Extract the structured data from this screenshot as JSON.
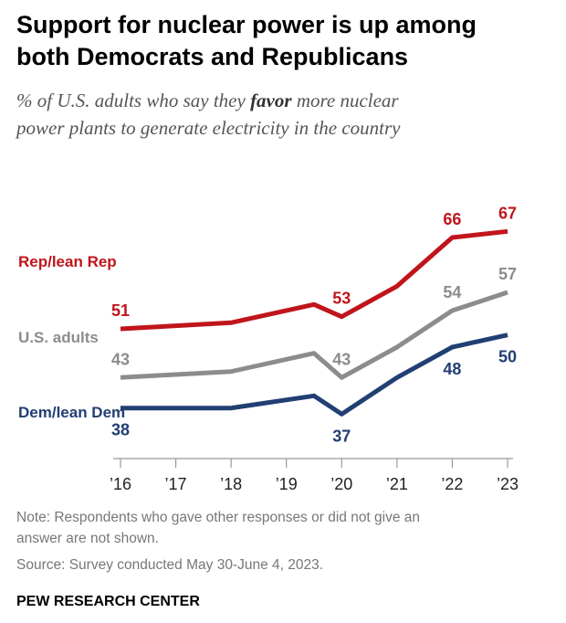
{
  "title_line1": "Support for nuclear power is up among",
  "title_line2": "both Democrats and Republicans",
  "subtitle": {
    "line1_pre": "% of U.S. adults who say they ",
    "line1_bold": "favor",
    "line1_post": " more nuclear",
    "line2": "power plants to generate electricity in the country"
  },
  "note_line1": "Note: Respondents who gave other responses or did not give an",
  "note_line2": "answer are not shown.",
  "source": "Source: Survey conducted May 30-June 4, 2023.",
  "brand": "PEW RESEARCH CENTER",
  "chart_data": {
    "type": "line",
    "x_ticks": [
      2016,
      2017,
      2018,
      2019,
      2020,
      2021,
      2022,
      2023
    ],
    "x_tick_labels": [
      "’16",
      "’17",
      "’18",
      "’19",
      "’20",
      "’21",
      "’22",
      "’23"
    ],
    "ylim": [
      30,
      75
    ],
    "series": [
      {
        "name": "Rep/lean Rep",
        "color": "#c0151c",
        "points": [
          [
            2016,
            51
          ],
          [
            2018,
            52
          ],
          [
            2019.5,
            55
          ],
          [
            2020,
            53
          ],
          [
            2021,
            58
          ],
          [
            2022,
            66
          ],
          [
            2023,
            67
          ]
        ],
        "labels": [
          {
            "x": 2016,
            "y": 51,
            "text": "51",
            "pos": "above"
          },
          {
            "x": 2020,
            "y": 53,
            "text": "53",
            "pos": "above"
          },
          {
            "x": 2022,
            "y": 66,
            "text": "66",
            "pos": "above"
          },
          {
            "x": 2023,
            "y": 67,
            "text": "67",
            "pos": "above"
          }
        ]
      },
      {
        "name": "U.S. adults",
        "color": "#8c8c8c",
        "points": [
          [
            2016,
            43
          ],
          [
            2018,
            44
          ],
          [
            2019.5,
            47
          ],
          [
            2020,
            43
          ],
          [
            2021,
            48
          ],
          [
            2022,
            54
          ],
          [
            2023,
            57
          ]
        ],
        "labels": [
          {
            "x": 2016,
            "y": 43,
            "text": "43",
            "pos": "above"
          },
          {
            "x": 2020,
            "y": 43,
            "text": "43",
            "pos": "above"
          },
          {
            "x": 2022,
            "y": 54,
            "text": "54",
            "pos": "above"
          },
          {
            "x": 2023,
            "y": 57,
            "text": "57",
            "pos": "above"
          }
        ]
      },
      {
        "name": "Dem/lean Dem",
        "color": "#213f73",
        "points": [
          [
            2016,
            38
          ],
          [
            2018,
            38
          ],
          [
            2019.5,
            40
          ],
          [
            2020,
            37
          ],
          [
            2021,
            43
          ],
          [
            2022,
            48
          ],
          [
            2023,
            50
          ]
        ],
        "labels": [
          {
            "x": 2016,
            "y": 38,
            "text": "38",
            "pos": "below"
          },
          {
            "x": 2020,
            "y": 37,
            "text": "37",
            "pos": "below"
          },
          {
            "x": 2022,
            "y": 48,
            "text": "48",
            "pos": "below"
          },
          {
            "x": 2023,
            "y": 50,
            "text": "50",
            "pos": "below"
          }
        ]
      }
    ]
  }
}
